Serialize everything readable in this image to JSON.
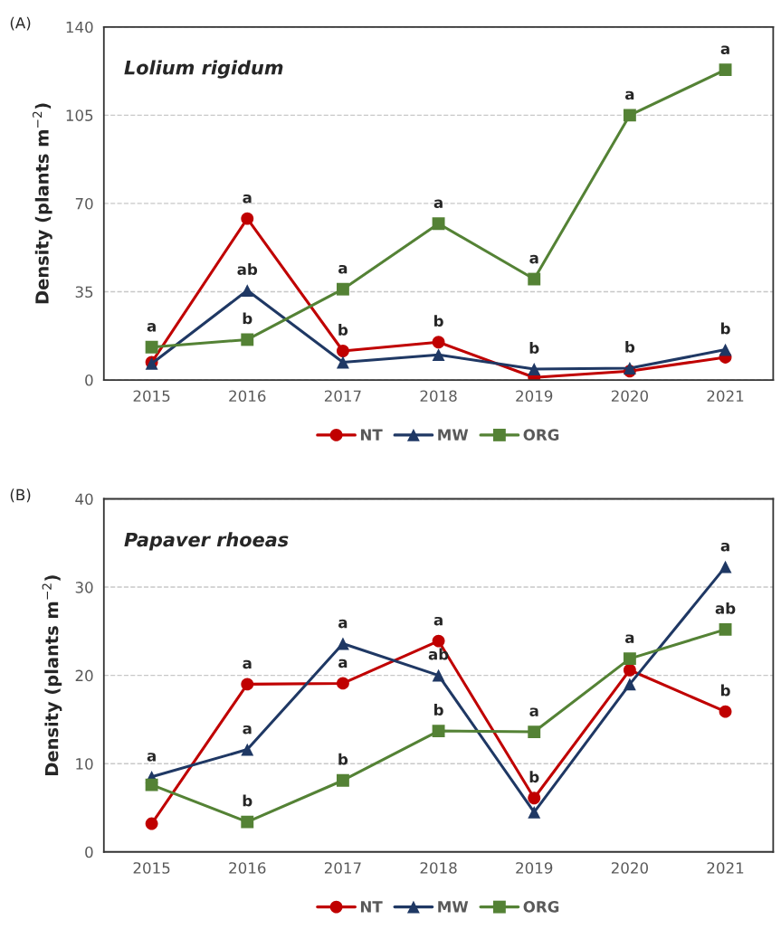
{
  "chart_data": [
    {
      "type": "line",
      "title": "Lolium rigidum",
      "ylabel": "Density (plants m$^{−2}$)",
      "categories": [
        "2015",
        "2016",
        "2017",
        "2018",
        "2019",
        "2020",
        "2021"
      ],
      "series": [
        {
          "name": "NT",
          "color": "#c00000",
          "marker": "circle",
          "values": [
            7,
            64,
            11.5,
            15,
            1,
            3.5,
            9
          ]
        },
        {
          "name": "MW",
          "color": "#1f3864",
          "marker": "triangle",
          "values": [
            6.5,
            35.5,
            7,
            10,
            4.3,
            4.7,
            12
          ]
        },
        {
          "name": "ORG",
          "color": "#548235",
          "marker": "square",
          "values": [
            13,
            16,
            36,
            62,
            40,
            105,
            123
          ]
        }
      ],
      "ylim": [
        0,
        140
      ],
      "yticks": [
        0,
        35,
        70,
        105,
        140
      ],
      "grid": "y",
      "legend": "bottom",
      "line_style": "solid",
      "annotations": [
        "(A)",
        {
          "text": "a",
          "x": "2015",
          "y": 13
        },
        {
          "text": "a",
          "x": "2016",
          "y": 64
        },
        {
          "text": "ab",
          "x": "2016",
          "y": 35.5
        },
        {
          "text": "b",
          "x": "2016",
          "y": 16
        },
        {
          "text": "a",
          "x": "2017",
          "y": 36
        },
        {
          "text": "b",
          "x": "2017",
          "y": 11.5
        },
        {
          "text": "a",
          "x": "2018",
          "y": 62
        },
        {
          "text": "b",
          "x": "2018",
          "y": 15
        },
        {
          "text": "a",
          "x": "2019",
          "y": 40
        },
        {
          "text": "b",
          "x": "2019",
          "y": 4.3
        },
        {
          "text": "a",
          "x": "2020",
          "y": 105
        },
        {
          "text": "b",
          "x": "2020",
          "y": 4.7
        },
        {
          "text": "a",
          "x": "2021",
          "y": 123
        },
        {
          "text": "b",
          "x": "2021",
          "y": 12
        }
      ]
    },
    {
      "type": "line",
      "title": "Papaver rhoeas",
      "ylabel": "Density (plants m$^{−2}$)",
      "categories": [
        "2015",
        "2016",
        "2017",
        "2018",
        "2019",
        "2020",
        "2021"
      ],
      "series": [
        {
          "name": "NT",
          "color": "#c00000",
          "marker": "circle",
          "values": [
            3.2,
            19.0,
            19.1,
            23.9,
            6.1,
            20.6,
            15.9
          ]
        },
        {
          "name": "MW",
          "color": "#1f3864",
          "marker": "triangle",
          "values": [
            8.5,
            11.6,
            23.6,
            20,
            4.5,
            19,
            32.3
          ]
        },
        {
          "name": "ORG",
          "color": "#548235",
          "marker": "square",
          "values": [
            7.6,
            3.4,
            8.1,
            13.7,
            13.6,
            21.9,
            25.2
          ]
        }
      ],
      "ylim": [
        0,
        40
      ],
      "yticks": [
        0,
        10,
        20,
        30,
        40
      ],
      "grid": "y",
      "legend": "bottom",
      "line_style": "solid",
      "annotations": [
        "(B)",
        {
          "text": "a",
          "x": "2015",
          "y": 8.5
        },
        {
          "text": "a",
          "x": "2016",
          "y": 19.0
        },
        {
          "text": "a",
          "x": "2016",
          "y": 11.6
        },
        {
          "text": "b",
          "x": "2016",
          "y": 3.4
        },
        {
          "text": "a",
          "x": "2017",
          "y": 23.6
        },
        {
          "text": "a",
          "x": "2017",
          "y": 19.1
        },
        {
          "text": "b",
          "x": "2017",
          "y": 8.1
        },
        {
          "text": "a",
          "x": "2018",
          "y": 23.9
        },
        {
          "text": "ab",
          "x": "2018",
          "y": 20
        },
        {
          "text": "b",
          "x": "2018",
          "y": 13.7
        },
        {
          "text": "a",
          "x": "2019",
          "y": 13.6
        },
        {
          "text": "b",
          "x": "2019",
          "y": 6.1
        },
        {
          "text": "a",
          "x": "2020",
          "y": 21.9
        },
        {
          "text": "a",
          "x": "2021",
          "y": 32.3
        },
        {
          "text": "ab",
          "x": "2021",
          "y": 25.2
        },
        {
          "text": "b",
          "x": "2021",
          "y": 15.9
        }
      ]
    }
  ]
}
